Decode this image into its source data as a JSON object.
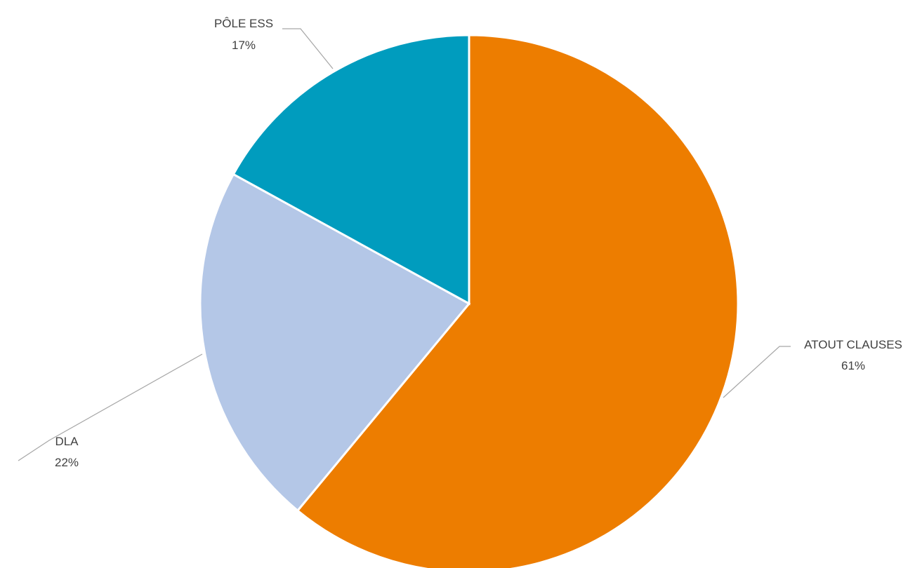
{
  "chart_data": {
    "type": "pie",
    "title": "",
    "slices": [
      {
        "label": "ATOUT CLAUSES",
        "value": 61,
        "value_label": "61%",
        "color": "#ED7D00"
      },
      {
        "label": "DLA",
        "value": 22,
        "value_label": "22%",
        "color": "#B4C7E7"
      },
      {
        "label": "PÔLE ESS",
        "value": 17,
        "value_label": "17%",
        "color": "#009CBE"
      }
    ],
    "start_angle_deg": 0,
    "direction": "clockwise",
    "legend": "none",
    "data_labels": "outside-with-leader-lines"
  }
}
